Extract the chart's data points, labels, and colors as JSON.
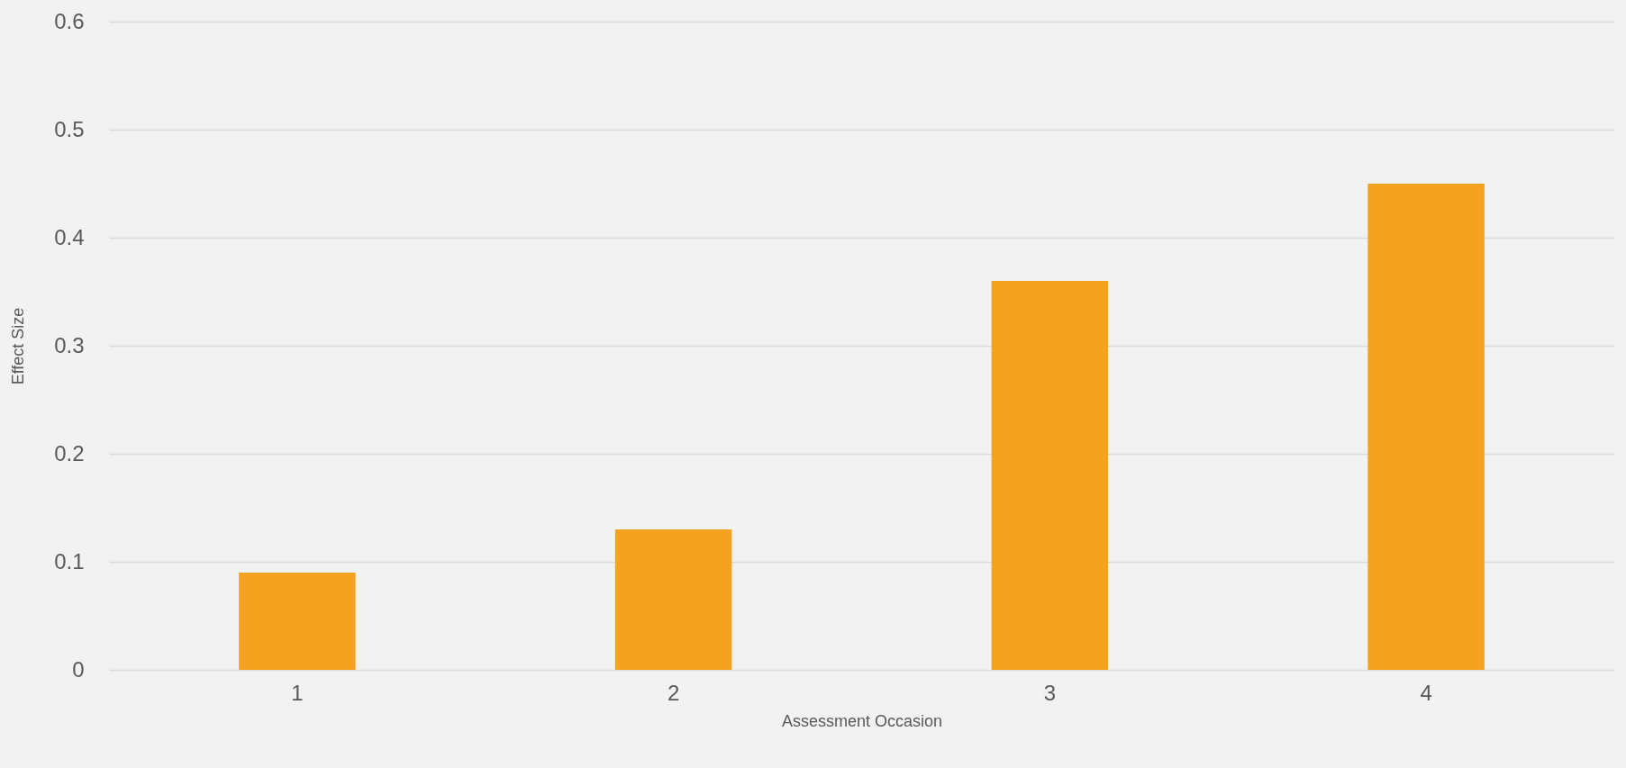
{
  "chart_data": {
    "type": "bar",
    "xlabel": "Assessment Occasion",
    "ylabel": "Effect Size",
    "categories": [
      "1",
      "2",
      "3",
      "4"
    ],
    "values": [
      0.09,
      0.13,
      0.36,
      0.45
    ],
    "color": "#f5a31f",
    "ylim": [
      0,
      0.6
    ],
    "yticks": [
      0,
      0.1,
      0.2,
      0.3,
      0.4,
      0.5,
      0.6
    ],
    "grid": "y"
  }
}
